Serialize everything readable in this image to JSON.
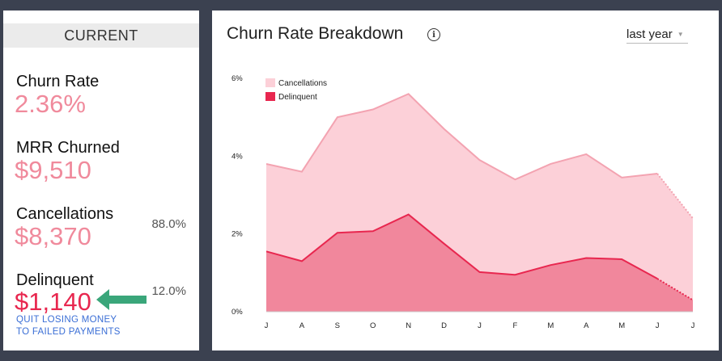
{
  "sidebar": {
    "header": "CURRENT",
    "metrics": [
      {
        "label": "Churn Rate",
        "value": "2.36%"
      },
      {
        "label": "MRR Churned",
        "value": "$9,510"
      },
      {
        "label": "Cancellations",
        "value": "$8,370",
        "percent": "88.0%"
      },
      {
        "label": "Delinquent",
        "value": "$1,140",
        "percent": "12.0%"
      }
    ],
    "cta_line1": "QUIT LOSING MONEY",
    "cta_line2": "TO FAILED PAYMENTS",
    "arrow_color": "#3aa67a"
  },
  "chart_panel": {
    "title": "Churn Rate Breakdown",
    "info_icon": "info-icon",
    "range_select": {
      "value": "last year"
    }
  },
  "chart_data": {
    "type": "area",
    "categories": [
      "J",
      "A",
      "S",
      "O",
      "N",
      "D",
      "J",
      "F",
      "M",
      "A",
      "M",
      "J",
      "J"
    ],
    "yticks": [
      "0%",
      "2%",
      "4%",
      "6%"
    ],
    "ylim": [
      0,
      6
    ],
    "series": [
      {
        "name": "Cancellations",
        "color": "#f3a3b1",
        "fill": "#fcd0d8",
        "values": [
          3.8,
          3.6,
          5.0,
          5.2,
          5.6,
          4.7,
          3.9,
          3.4,
          3.8,
          4.05,
          3.45,
          3.55,
          2.4
        ]
      },
      {
        "name": "Delinquent",
        "color": "#e8274f",
        "fill": "#f1879c",
        "values": [
          1.55,
          1.3,
          2.03,
          2.07,
          2.5,
          1.75,
          1.02,
          0.95,
          1.2,
          1.38,
          1.35,
          0.85,
          0.3
        ]
      }
    ],
    "projected_last_segment": true,
    "legend_position": "top-left",
    "grid": false
  }
}
